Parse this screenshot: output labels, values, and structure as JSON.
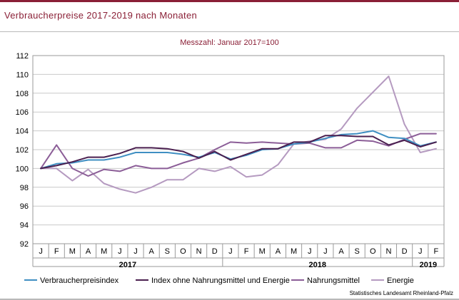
{
  "page": {
    "title": "Verbraucherpreise 2017-2019 nach Monaten",
    "source": "Statistisches Landesamt Rheinland-Pfalz"
  },
  "chart_data": {
    "type": "line",
    "title": "",
    "subtitle": "Messzahl: Januar 2017=100",
    "xlabel": "",
    "ylabel": "",
    "ylim": [
      92,
      112
    ],
    "yticks": [
      92,
      94,
      96,
      98,
      100,
      102,
      104,
      106,
      108,
      110,
      112
    ],
    "grid": true,
    "legend_position": "bottom",
    "categories": [
      "J",
      "F",
      "M",
      "A",
      "M",
      "J",
      "J",
      "A",
      "S",
      "O",
      "N",
      "D",
      "J",
      "F",
      "M",
      "A",
      "M",
      "J",
      "J",
      "A",
      "S",
      "O",
      "N",
      "D",
      "J",
      "F"
    ],
    "year_labels": [
      {
        "label": "2017",
        "start": 0,
        "end": 11
      },
      {
        "label": "2018",
        "start": 12,
        "end": 23
      },
      {
        "label": "2019",
        "start": 24,
        "end": 25
      }
    ],
    "series": [
      {
        "name": "Verbraucherpreisindex",
        "color": "#3f8fc2",
        "values": [
          100.0,
          100.5,
          100.6,
          100.9,
          100.9,
          101.2,
          101.7,
          101.7,
          101.7,
          101.5,
          101.2,
          101.7,
          101.0,
          101.4,
          102.0,
          102.1,
          102.6,
          102.8,
          103.2,
          103.6,
          103.7,
          104.0,
          103.3,
          103.2,
          102.4,
          102.8
        ]
      },
      {
        "name": "Index ohne Nahrungsmittel und Energie",
        "color": "#4a1f4f",
        "values": [
          100.0,
          100.3,
          100.7,
          101.2,
          101.2,
          101.6,
          102.2,
          102.2,
          102.1,
          101.8,
          101.1,
          101.8,
          100.9,
          101.5,
          102.1,
          102.1,
          102.8,
          102.8,
          103.5,
          103.5,
          103.4,
          103.4,
          102.5,
          103.0,
          102.3,
          102.8
        ]
      },
      {
        "name": "Nahrungsmittel",
        "color": "#8b5d97",
        "values": [
          100.0,
          102.5,
          100.0,
          99.2,
          99.9,
          99.7,
          100.3,
          100.0,
          100.0,
          100.6,
          101.1,
          102.0,
          102.8,
          102.7,
          102.8,
          102.7,
          102.6,
          102.7,
          102.2,
          102.2,
          103.0,
          102.9,
          102.4,
          103.1,
          103.7,
          103.7
        ]
      },
      {
        "name": "Energie",
        "color": "#b59ac0",
        "values": [
          100.0,
          100.0,
          98.7,
          99.9,
          98.4,
          97.8,
          97.4,
          98.0,
          98.8,
          98.8,
          100.0,
          99.7,
          100.2,
          99.1,
          99.3,
          100.4,
          102.6,
          102.9,
          103.1,
          104.2,
          106.4,
          108.1,
          109.8,
          104.7,
          101.7,
          102.1
        ]
      }
    ]
  }
}
